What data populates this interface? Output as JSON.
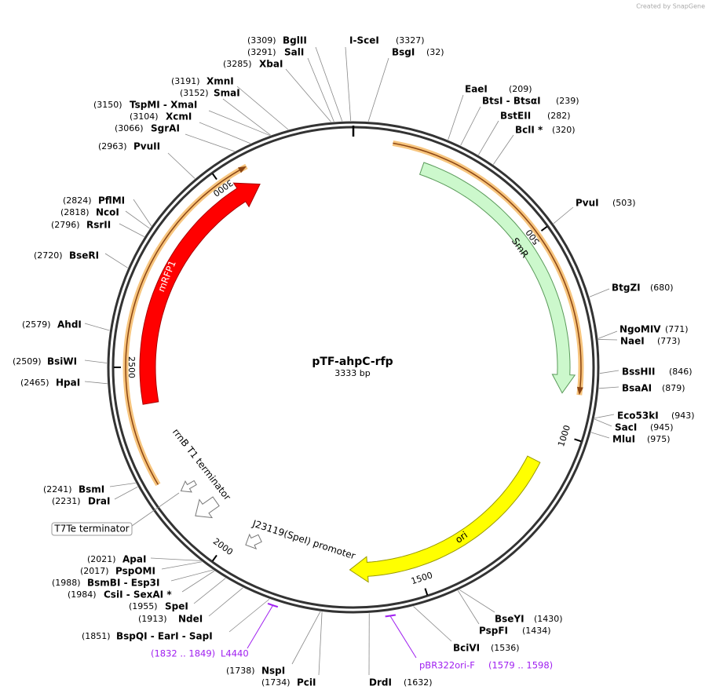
{
  "watermark": "Created by SnapGene",
  "title": "pTF-ahpC-rfp",
  "size": "3333 bp",
  "ticks": [
    500,
    1000,
    1500,
    2000,
    2500,
    3000
  ],
  "sites": [
    {
      "name": "BglII",
      "position": "(3309)"
    },
    {
      "name": "I-SceI",
      "position": "(3327)"
    },
    {
      "name": "SalI",
      "position": "(3291)"
    },
    {
      "name": "BsgI",
      "position": "(32)"
    },
    {
      "name": "XbaI",
      "position": "(3285)"
    },
    {
      "name": "XmnI",
      "position": "(3191)"
    },
    {
      "name": "SmaI",
      "position": "(3152)"
    },
    {
      "name": "TspMI - XmaI",
      "position": "(3150)"
    },
    {
      "name": "XcmI",
      "position": "(3104)"
    },
    {
      "name": "SgrAI",
      "position": "(3066)"
    },
    {
      "name": "PvuII",
      "position": "(2963)"
    },
    {
      "name": "EaeI",
      "position": "(209)"
    },
    {
      "name": "BtsI - BtsαI",
      "position": "(239)"
    },
    {
      "name": "BstEII",
      "position": "(282)"
    },
    {
      "name": "BclI *",
      "position": "(320)"
    },
    {
      "name": "PvuI",
      "position": "(503)"
    },
    {
      "name": "BtgZI",
      "position": "(680)"
    },
    {
      "name": "NgoMIV",
      "position": "(771)"
    },
    {
      "name": "NaeI",
      "position": "(773)"
    },
    {
      "name": "BssHII",
      "position": "(846)"
    },
    {
      "name": "BsaAI",
      "position": "(879)"
    },
    {
      "name": "Eco53kI",
      "position": "(943)"
    },
    {
      "name": "SacI",
      "position": "(945)"
    },
    {
      "name": "MluI",
      "position": "(975)"
    },
    {
      "name": "BseYI",
      "position": "(1430)"
    },
    {
      "name": "PspFI",
      "position": "(1434)"
    },
    {
      "name": "BciVI",
      "position": "(1536)"
    },
    {
      "name": "DrdI",
      "position": "(1632)"
    },
    {
      "name": "PciI",
      "position": "(1734)"
    },
    {
      "name": "NspI",
      "position": "(1738)"
    },
    {
      "name": "BspQI - EarI - SapI",
      "position": "(1851)"
    },
    {
      "name": "NdeI",
      "position": "(1913)"
    },
    {
      "name": "SpeI",
      "position": "(1955)"
    },
    {
      "name": "CsiI - SexAI *",
      "position": "(1984)"
    },
    {
      "name": "BsmBI - Esp3I",
      "position": "(1988)"
    },
    {
      "name": "PspOMI",
      "position": "(2017)"
    },
    {
      "name": "ApaI",
      "position": "(2021)"
    },
    {
      "name": "BsmI",
      "position": "(2241)"
    },
    {
      "name": "DraI",
      "position": "(2231)"
    },
    {
      "name": "HpaI",
      "position": "(2465)"
    },
    {
      "name": "BsiWI",
      "position": "(2509)"
    },
    {
      "name": "AhdI",
      "position": "(2579)"
    },
    {
      "name": "BseRI",
      "position": "(2720)"
    },
    {
      "name": "RsrII",
      "position": "(2796)"
    },
    {
      "name": "NcoI",
      "position": "(2818)"
    },
    {
      "name": "PflMI",
      "position": "(2824)"
    }
  ],
  "primers": [
    {
      "name": "L4440",
      "range": "(1832 .. 1849)"
    },
    {
      "name": "pBR322ori-F",
      "range": "(1579 .. 1598)"
    }
  ],
  "features": [
    {
      "label": "SmR"
    },
    {
      "label": "mRFP1"
    },
    {
      "label": "ori"
    },
    {
      "label": "rrnB T1 terminator"
    },
    {
      "label": "J23119(SpeI) promoter"
    },
    {
      "label": "T7Te terminator"
    }
  ]
}
